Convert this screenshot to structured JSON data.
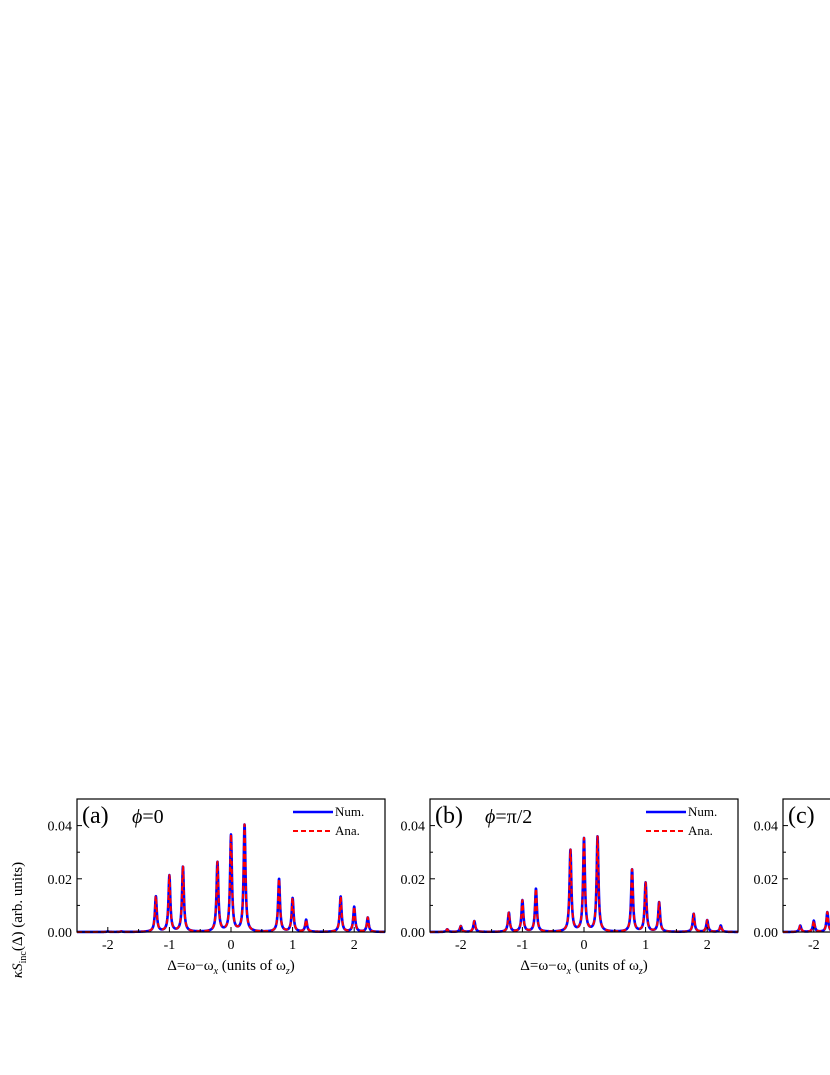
{
  "figure": {
    "ylabel": {
      "kappa": "κS",
      "sub": "inc",
      "arg": "(Δ)",
      "units": " (arb. units)"
    },
    "xlabel": {
      "a": "Δ=ω−ω",
      "sub1": "x",
      "b": " (units of ω",
      "sub2": "z",
      "c": ")"
    },
    "series_colors": {
      "Num.": "#0000ff",
      "Ana.": "#ff0000"
    },
    "legend": {
      "num": "Num.",
      "ana": "Ana."
    }
  },
  "chart_data": [
    {
      "type": "line",
      "panel": "(a)",
      "annotation": "ϕ=0",
      "xlim": [
        -2.5,
        2.5
      ],
      "ylim": [
        0,
        0.05
      ],
      "xticks": [
        "-2",
        "-1",
        "0",
        "1",
        "2"
      ],
      "yticks": [
        "0.00",
        "0.02",
        "0.04"
      ],
      "legend_position": "top-right",
      "peak_width": 0.018,
      "series": [
        {
          "name": "Num.",
          "style": "solid",
          "color": "#0000ff",
          "peaks": [
            [
              -2.0,
              0.0002
            ],
            [
              -1.78,
              0.0002
            ],
            [
              -1.22,
              0.0133
            ],
            [
              -1.0,
              0.0211
            ],
            [
              -0.78,
              0.0245
            ],
            [
              -0.22,
              0.0262
            ],
            [
              0.0,
              0.0362
            ],
            [
              0.22,
              0.0403
            ],
            [
              0.78,
              0.0199
            ],
            [
              1.0,
              0.0126
            ],
            [
              1.22,
              0.0045
            ],
            [
              1.78,
              0.0133
            ],
            [
              2.0,
              0.0094
            ],
            [
              2.22,
              0.0054
            ]
          ]
        },
        {
          "name": "Ana.",
          "style": "dashed",
          "color": "#ff0000",
          "peaks": [
            [
              -2.0,
              0.0002
            ],
            [
              -1.78,
              0.0002
            ],
            [
              -1.22,
              0.0133
            ],
            [
              -1.0,
              0.0211
            ],
            [
              -0.78,
              0.0245
            ],
            [
              -0.22,
              0.0262
            ],
            [
              0.0,
              0.0362
            ],
            [
              0.22,
              0.0403
            ],
            [
              0.78,
              0.0199
            ],
            [
              1.0,
              0.0126
            ],
            [
              1.22,
              0.0045
            ],
            [
              1.78,
              0.0133
            ],
            [
              2.0,
              0.0094
            ],
            [
              2.22,
              0.0054
            ]
          ]
        }
      ]
    },
    {
      "type": "line",
      "panel": "(b)",
      "annotation": "ϕ=π/2",
      "xlim": [
        -2.5,
        2.5
      ],
      "ylim": [
        0,
        0.05
      ],
      "xticks": [
        "-2",
        "-1",
        "0",
        "1",
        "2"
      ],
      "yticks": [
        "0.00",
        "0.02",
        "0.04"
      ],
      "legend_position": "top-right",
      "peak_width": 0.018,
      "series": [
        {
          "name": "Num.",
          "style": "solid",
          "color": "#0000ff",
          "peaks": [
            [
              -2.22,
              0.001
            ],
            [
              -2.0,
              0.0022
            ],
            [
              -1.78,
              0.0041
            ],
            [
              -1.22,
              0.0072
            ],
            [
              -1.0,
              0.0118
            ],
            [
              -0.78,
              0.0162
            ],
            [
              -0.22,
              0.0308
            ],
            [
              0.0,
              0.0349
            ],
            [
              0.22,
              0.0358
            ],
            [
              0.78,
              0.0235
            ],
            [
              1.0,
              0.0184
            ],
            [
              1.22,
              0.0111
            ],
            [
              1.78,
              0.0068
            ],
            [
              2.0,
              0.0044
            ],
            [
              2.22,
              0.0024
            ]
          ]
        },
        {
          "name": "Ana.",
          "style": "dashed",
          "color": "#ff0000",
          "peaks": [
            [
              -2.22,
              0.001
            ],
            [
              -2.0,
              0.0022
            ],
            [
              -1.78,
              0.0041
            ],
            [
              -1.22,
              0.0072
            ],
            [
              -1.0,
              0.0118
            ],
            [
              -0.78,
              0.0162
            ],
            [
              -0.22,
              0.0308
            ],
            [
              0.0,
              0.0349
            ],
            [
              0.22,
              0.0358
            ],
            [
              0.78,
              0.0235
            ],
            [
              1.0,
              0.0184
            ],
            [
              1.22,
              0.0111
            ],
            [
              1.78,
              0.0068
            ],
            [
              2.0,
              0.0044
            ],
            [
              2.22,
              0.0024
            ]
          ]
        }
      ]
    },
    {
      "type": "line",
      "panel": "(c)",
      "annotation": "",
      "xlim": [
        -2.5,
        2.5
      ],
      "ylim": [
        0,
        0.05
      ],
      "xticks": [
        "-2"
      ],
      "yticks": [
        "0.00",
        "0.02",
        "0.04"
      ],
      "legend_position": "top-right",
      "peak_width": 0.018,
      "series": [
        {
          "name": "Num.",
          "style": "solid",
          "color": "#0000ff",
          "peaks": [
            [
              -2.22,
              0.0024
            ],
            [
              -2.0,
              0.0042
            ],
            [
              -1.78,
              0.0075
            ]
          ]
        },
        {
          "name": "Ana.",
          "style": "dashed",
          "color": "#ff0000",
          "peaks": [
            [
              -2.22,
              0.0024
            ],
            [
              -2.0,
              0.0042
            ],
            [
              -1.78,
              0.0075
            ]
          ]
        }
      ]
    }
  ]
}
